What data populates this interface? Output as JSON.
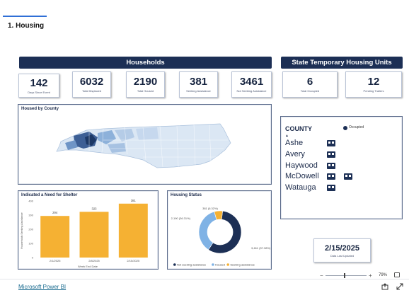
{
  "page": {
    "heading": "1. Housing"
  },
  "households": {
    "banner": "Households",
    "kpis": [
      {
        "value": "142",
        "label": "Days Since Event"
      },
      {
        "value": "6032",
        "label": "Total Displaced"
      },
      {
        "value": "2190",
        "label": "Total Housed"
      },
      {
        "value": "381",
        "label": "Seeking Assistance"
      },
      {
        "value": "3461",
        "label": "Not Seeking Assistance"
      }
    ]
  },
  "state_units": {
    "banner": "State Temporary Housing Units",
    "kpis": [
      {
        "value": "6",
        "label": "Total Occupied"
      },
      {
        "value": "12",
        "label": "Pending Trailers"
      }
    ]
  },
  "map_panel": {
    "title": "Housed by County"
  },
  "county_panel": {
    "header": "COUNTY",
    "legend_label": "Occupied",
    "counties": [
      {
        "name": "Ashe",
        "occupied": 1
      },
      {
        "name": "Avery",
        "occupied": 1
      },
      {
        "name": "Haywood",
        "occupied": 1
      },
      {
        "name": "McDowell",
        "occupied": 2
      },
      {
        "name": "Watauga",
        "occupied": 1
      }
    ]
  },
  "date_card": {
    "value": "2/15/2025",
    "label": "Data Last Updated"
  },
  "colors": {
    "navy": "#1c2f55",
    "bar_orange": "#f5b133",
    "donut_light_blue": "#7fb2e5",
    "map_light": "#dbe7f4",
    "map_dark": "#1c3866"
  },
  "chart_data": [
    {
      "type": "bar",
      "title": "Indicated a Need for Shelter",
      "xlabel": "Week End Date",
      "ylabel": "Households Seeking Assistance",
      "categories": [
        "2/1/2025",
        "2/8/2025",
        "2/15/2025"
      ],
      "values": [
        294,
        323,
        381
      ],
      "data_labels": [
        "294",
        "323",
        "381"
      ],
      "yticks": [
        "0",
        "100",
        "200",
        "300",
        "400"
      ],
      "ylim": [
        0,
        400
      ]
    },
    {
      "type": "pie",
      "title": "Housing Status",
      "labels": [
        "Not Seeking Assistance",
        "Housed",
        "Seeking Assistance"
      ],
      "legend_labels": [
        "Not seeking assistance",
        "Housed",
        "Seeking assistance"
      ],
      "values": [
        3461,
        2190,
        381
      ],
      "slice_labels": [
        "3,461 (57.38%)",
        "2,190 (36.31%)",
        "381 (6.32%)"
      ],
      "colors": [
        "#1c2f55",
        "#7fb2e5",
        "#f5b133"
      ],
      "donut": true,
      "legend_position": "bottom"
    }
  ],
  "footer": {
    "link": "Microsoft Power BI",
    "zoom": "79%"
  }
}
